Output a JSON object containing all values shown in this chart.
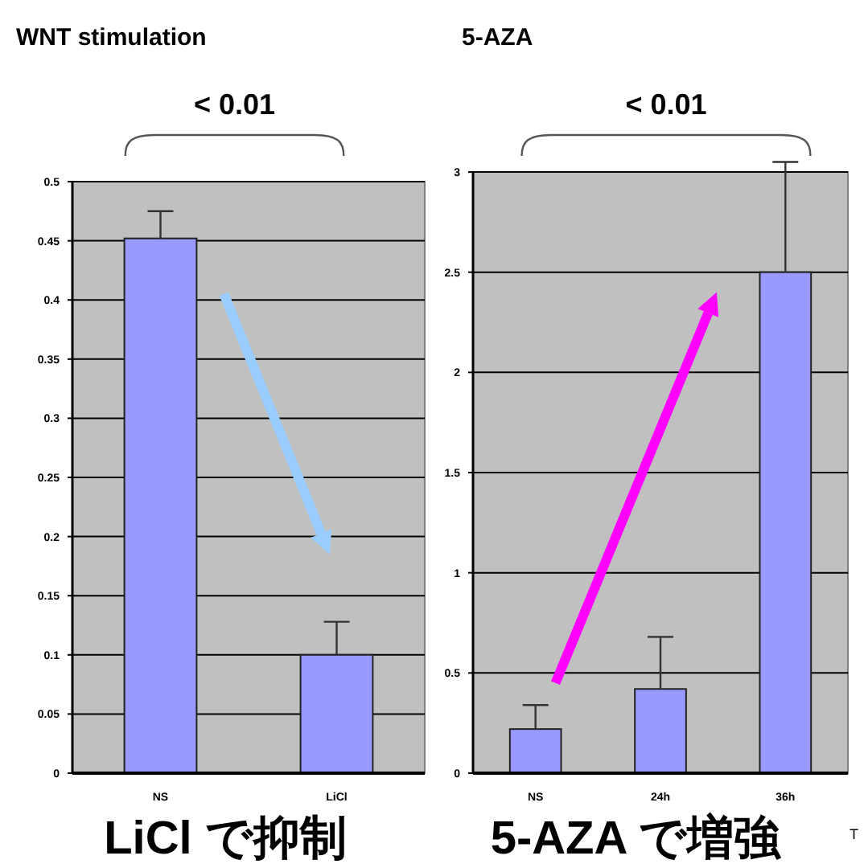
{
  "chart_data": [
    {
      "type": "bar",
      "title": "WNT stimulation",
      "categories": [
        "NS",
        "LiCl"
      ],
      "series": [
        {
          "color": "#9999ff",
          "values": [
            0.452,
            0.1
          ],
          "errors": [
            [
              0.452,
              0.475
            ],
            [
              0.1,
              0.128
            ]
          ]
        }
      ],
      "ylim": [
        0,
        0.5
      ],
      "yticks": [
        0,
        0.05,
        0.1,
        0.15,
        0.2,
        0.25,
        0.3,
        0.35,
        0.4,
        0.45,
        0.5
      ],
      "grid": "y",
      "annotations": [
        "< 0.01",
        "LiCl で抑制"
      ]
    },
    {
      "type": "bar",
      "title": "5-AZA",
      "categories": [
        "NS",
        "24h",
        "36h"
      ],
      "series": [
        {
          "color": "#9999ff",
          "values": [
            0.22,
            0.42,
            2.5
          ],
          "errors": [
            [
              0.22,
              0.34
            ],
            [
              0.42,
              0.68
            ],
            [
              2.5,
              3.05
            ]
          ]
        }
      ],
      "ylim": [
        0,
        3
      ],
      "yticks": [
        0,
        0.5,
        1,
        1.5,
        2,
        2.5,
        3
      ],
      "grid": "y",
      "annotations": [
        "< 0.01",
        "5-AZA で増強",
        "T"
      ]
    }
  ]
}
